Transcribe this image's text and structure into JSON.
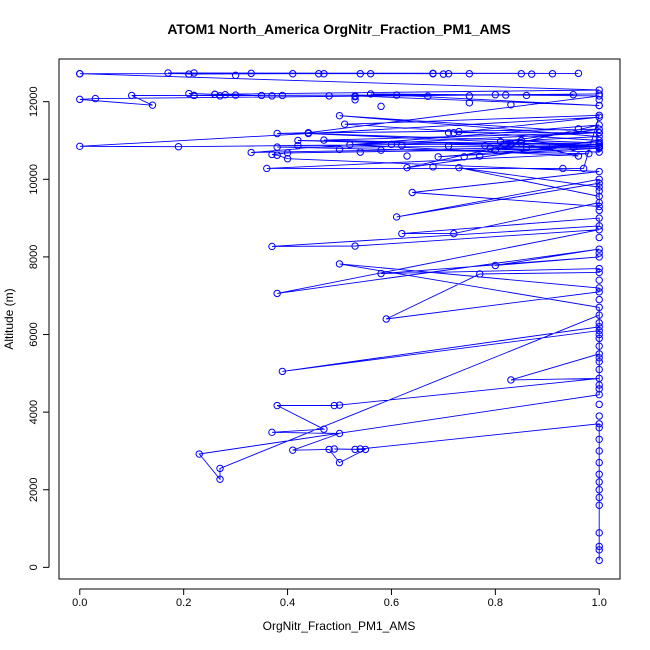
{
  "chart_data": {
    "type": "scatter",
    "title": "ATOM1 North_America OrgNitr_Fraction_PM1_AMS",
    "xlabel": "OrgNitr_Fraction_PM1_AMS",
    "ylabel": "Altitude (m)",
    "xlim": [
      -0.04,
      1.04
    ],
    "ylim": [
      -300,
      13100
    ],
    "x_ticks": [
      0.0,
      0.2,
      0.4,
      0.6,
      0.8,
      1.0
    ],
    "x_tick_labels": [
      "0.0",
      "0.2",
      "0.4",
      "0.6",
      "0.8",
      "1.0"
    ],
    "y_ticks": [
      0,
      2000,
      4000,
      6000,
      8000,
      10000,
      12000
    ],
    "y_tick_labels": [
      "0",
      "2000",
      "4000",
      "6000",
      "8000",
      "10000",
      "12000"
    ],
    "grid": false,
    "legend": "none",
    "series": [
      {
        "color": "#0000ff",
        "marker": "open-circle",
        "connect": true,
        "x": [
          1.0,
          1.0,
          1.0,
          1.0,
          1.0,
          1.0,
          1.0,
          1.0,
          1.0,
          1.0,
          1.0,
          1.0,
          1.0,
          0.54,
          0.53,
          0.49,
          0.55,
          0.5,
          0.48,
          0.41,
          0.5,
          0.37,
          0.47,
          0.38,
          0.49,
          0.5,
          1.0,
          0.83,
          1.0,
          1.0,
          1.0,
          1.0,
          1.0,
          0.39,
          1.0,
          1.0,
          0.27,
          0.27,
          0.23,
          1.0,
          1.0,
          1.0,
          1.0,
          1.0,
          1.0,
          0.5,
          1.0,
          1.0,
          0.59,
          0.77,
          1.0,
          1.0,
          0.58,
          1.0,
          0.8,
          1.0,
          0.38,
          1.0,
          0.53,
          0.37,
          1.0,
          1.0,
          0.62,
          0.72,
          1.0,
          1.0,
          0.73,
          1.0,
          1.0,
          0.61,
          1.0,
          1.0,
          0.64,
          1.0,
          0.4,
          0.38,
          0.37,
          0.4,
          1.0,
          0.69,
          1.0,
          1.0,
          0.79,
          1.0,
          0.95,
          0.42,
          1.0,
          1.0,
          0.85,
          0.8,
          0.85,
          0.96,
          0.52,
          1.0,
          0.47,
          1.0,
          0.33,
          1.0,
          0.63,
          1.0,
          0.51,
          1.0,
          0.97,
          0.36,
          0.98,
          0.38,
          1.0,
          0.44,
          1.0,
          0.42,
          0.19,
          0.0,
          1.0,
          0.72,
          1.0,
          0.5,
          1.0,
          0.81,
          1.0,
          0.38,
          0.44,
          1.0,
          0.56,
          1.0,
          0.53,
          1.0,
          0.03,
          0.0,
          0.14,
          0.1,
          0.95,
          0.22,
          0.21,
          0.26,
          0.35,
          0.22,
          0.3,
          0.26,
          1.0,
          0.0,
          0.96,
          0.17,
          0.21,
          0.41,
          0.46,
          0.56,
          0.68
        ],
        "y": [
          180,
          450,
          540,
          890,
          1600,
          1800,
          2000,
          2400,
          2700,
          3000,
          3300,
          3600,
          3700,
          3050,
          3040,
          3050,
          3040,
          2700,
          3040,
          3020,
          3450,
          3480,
          3560,
          4170,
          4170,
          4180,
          4870,
          4830,
          5500,
          5100,
          5400,
          5700,
          6100,
          5050,
          6200,
          6500,
          2550,
          2270,
          2920,
          4450,
          4600,
          4700,
          5900,
          6300,
          6700,
          7820,
          7200,
          7100,
          6400,
          7560,
          7600,
          7700,
          7570,
          8000,
          7780,
          8200,
          7060,
          8700,
          8280,
          8270,
          8800,
          9000,
          8600,
          8600,
          9400,
          9560,
          10300,
          9800,
          10000,
          9030,
          9900,
          9300,
          9660,
          10200,
          10530,
          10620,
          10640,
          10680,
          10800,
          10580,
          10900,
          10700,
          10800,
          10830,
          10820,
          11000,
          10900,
          10820,
          11000,
          10750,
          10930,
          10600,
          10890,
          11200,
          11010,
          10850,
          10690,
          11400,
          10300,
          11000,
          11420,
          11650,
          10280,
          10280,
          10660,
          10830,
          10850,
          11180,
          10940,
          10870,
          10840,
          10850,
          11600,
          11200,
          11200,
          11640,
          11100,
          10970,
          11290,
          11180,
          11200,
          12150,
          12200,
          11900,
          12150,
          12200,
          12080,
          12060,
          11910,
          12160,
          12180,
          12160,
          12210,
          12190,
          12160,
          12160,
          12170,
          12190,
          12300,
          12720,
          12730,
          12740,
          12710,
          12720,
          12720,
          12720,
          12720
        ],
        "extra_markers": [
          {
            "x": 0.83,
            "y": 10900
          },
          {
            "x": 0.86,
            "y": 10830
          },
          {
            "x": 0.77,
            "y": 10600
          },
          {
            "x": 0.71,
            "y": 10860
          },
          {
            "x": 0.62,
            "y": 10870
          },
          {
            "x": 0.58,
            "y": 10750
          },
          {
            "x": 0.54,
            "y": 10700
          },
          {
            "x": 0.5,
            "y": 10770
          },
          {
            "x": 0.86,
            "y": 12160
          },
          {
            "x": 0.82,
            "y": 12170
          },
          {
            "x": 0.8,
            "y": 12180
          },
          {
            "x": 0.67,
            "y": 12140
          },
          {
            "x": 0.75,
            "y": 12150
          },
          {
            "x": 0.61,
            "y": 12170
          },
          {
            "x": 0.53,
            "y": 12130
          },
          {
            "x": 0.48,
            "y": 12150
          },
          {
            "x": 0.39,
            "y": 12160
          },
          {
            "x": 0.37,
            "y": 12150
          },
          {
            "x": 0.28,
            "y": 12180
          },
          {
            "x": 0.27,
            "y": 12150
          },
          {
            "x": 0.75,
            "y": 11970
          },
          {
            "x": 0.83,
            "y": 11920
          },
          {
            "x": 0.58,
            "y": 11880
          },
          {
            "x": 0.53,
            "y": 12050
          },
          {
            "x": 0.91,
            "y": 12720
          },
          {
            "x": 0.87,
            "y": 12710
          },
          {
            "x": 0.85,
            "y": 12720
          },
          {
            "x": 0.75,
            "y": 12720
          },
          {
            "x": 0.71,
            "y": 12720
          },
          {
            "x": 0.7,
            "y": 12710
          },
          {
            "x": 0.68,
            "y": 12730
          },
          {
            "x": 0.54,
            "y": 12720
          },
          {
            "x": 0.47,
            "y": 12720
          },
          {
            "x": 0.33,
            "y": 12730
          },
          {
            "x": 0.3,
            "y": 12680
          },
          {
            "x": 0.22,
            "y": 12740
          },
          {
            "x": 0.0,
            "y": 12720
          },
          {
            "x": 0.74,
            "y": 10580
          },
          {
            "x": 0.73,
            "y": 11230
          },
          {
            "x": 0.71,
            "y": 11200
          },
          {
            "x": 0.68,
            "y": 10320
          },
          {
            "x": 0.63,
            "y": 10600
          },
          {
            "x": 0.6,
            "y": 10900
          },
          {
            "x": 0.96,
            "y": 11300
          },
          {
            "x": 0.93,
            "y": 10280
          },
          {
            "x": 0.91,
            "y": 10850
          },
          {
            "x": 0.78,
            "y": 10870
          },
          {
            "x": 1.0,
            "y": 8500
          },
          {
            "x": 1.0,
            "y": 8100
          },
          {
            "x": 1.0,
            "y": 7400
          },
          {
            "x": 1.0,
            "y": 6900
          },
          {
            "x": 1.0,
            "y": 6000
          },
          {
            "x": 1.0,
            "y": 5300
          },
          {
            "x": 1.0,
            "y": 4200
          },
          {
            "x": 1.0,
            "y": 3900
          },
          {
            "x": 1.0,
            "y": 2200
          },
          {
            "x": 1.0,
            "y": 9200
          },
          {
            "x": 1.0,
            "y": 9700
          },
          {
            "x": 1.0,
            "y": 11900
          },
          {
            "x": 1.0,
            "y": 12050
          }
        ]
      }
    ]
  }
}
